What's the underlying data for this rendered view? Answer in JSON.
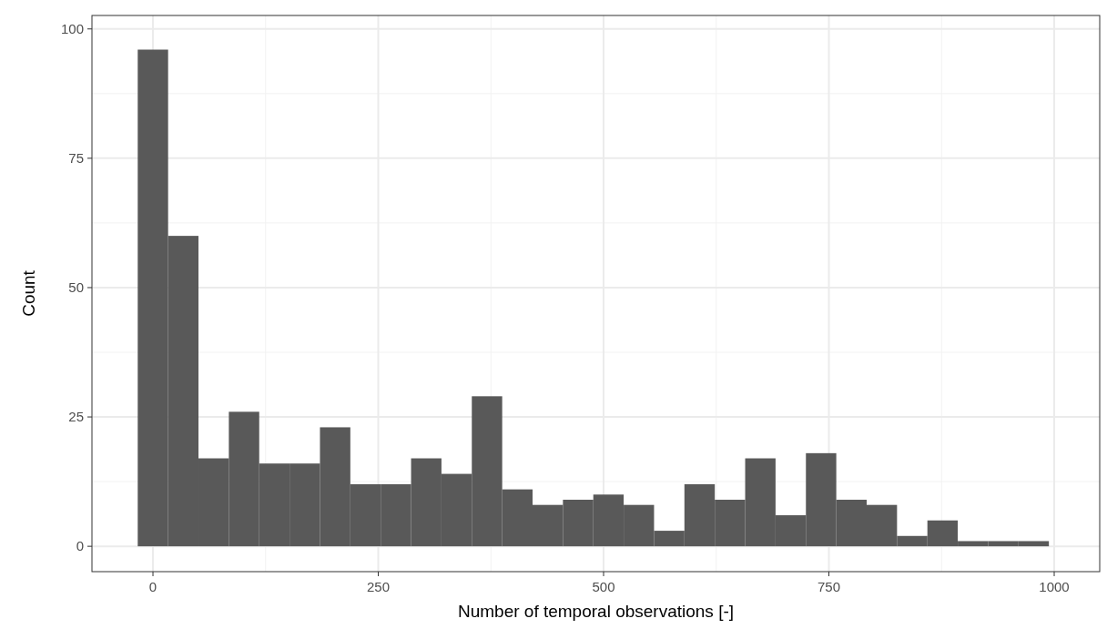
{
  "chart_data": {
    "type": "histogram",
    "xlabel": "Number of temporal observations [-]",
    "ylabel": "Count",
    "bins": [
      -16.9,
      16.8,
      50.5,
      84.2,
      117.9,
      151.6,
      185.3,
      219.0,
      252.7,
      286.4,
      320.1,
      353.8,
      387.5,
      421.2,
      454.9,
      488.6,
      522.3,
      556.0,
      589.7,
      623.4,
      657.1,
      690.8,
      724.5,
      758.2,
      791.9,
      825.6,
      859.3,
      893.0,
      926.7,
      960.4,
      994.1
    ],
    "values": [
      96,
      60,
      17,
      26,
      16,
      16,
      23,
      12,
      12,
      17,
      14,
      29,
      11,
      8,
      9,
      10,
      8,
      3,
      12,
      9,
      17,
      6,
      18,
      9,
      8,
      2,
      5,
      1,
      1,
      1
    ],
    "color": "#595959",
    "xlim": [
      -67.7,
      1050.5
    ],
    "xticks": [
      0,
      250,
      500,
      750,
      1000
    ],
    "ylim": [
      -4.9,
      102.6
    ],
    "yticks": [
      0,
      25,
      50,
      75,
      100
    ],
    "grid": true
  }
}
